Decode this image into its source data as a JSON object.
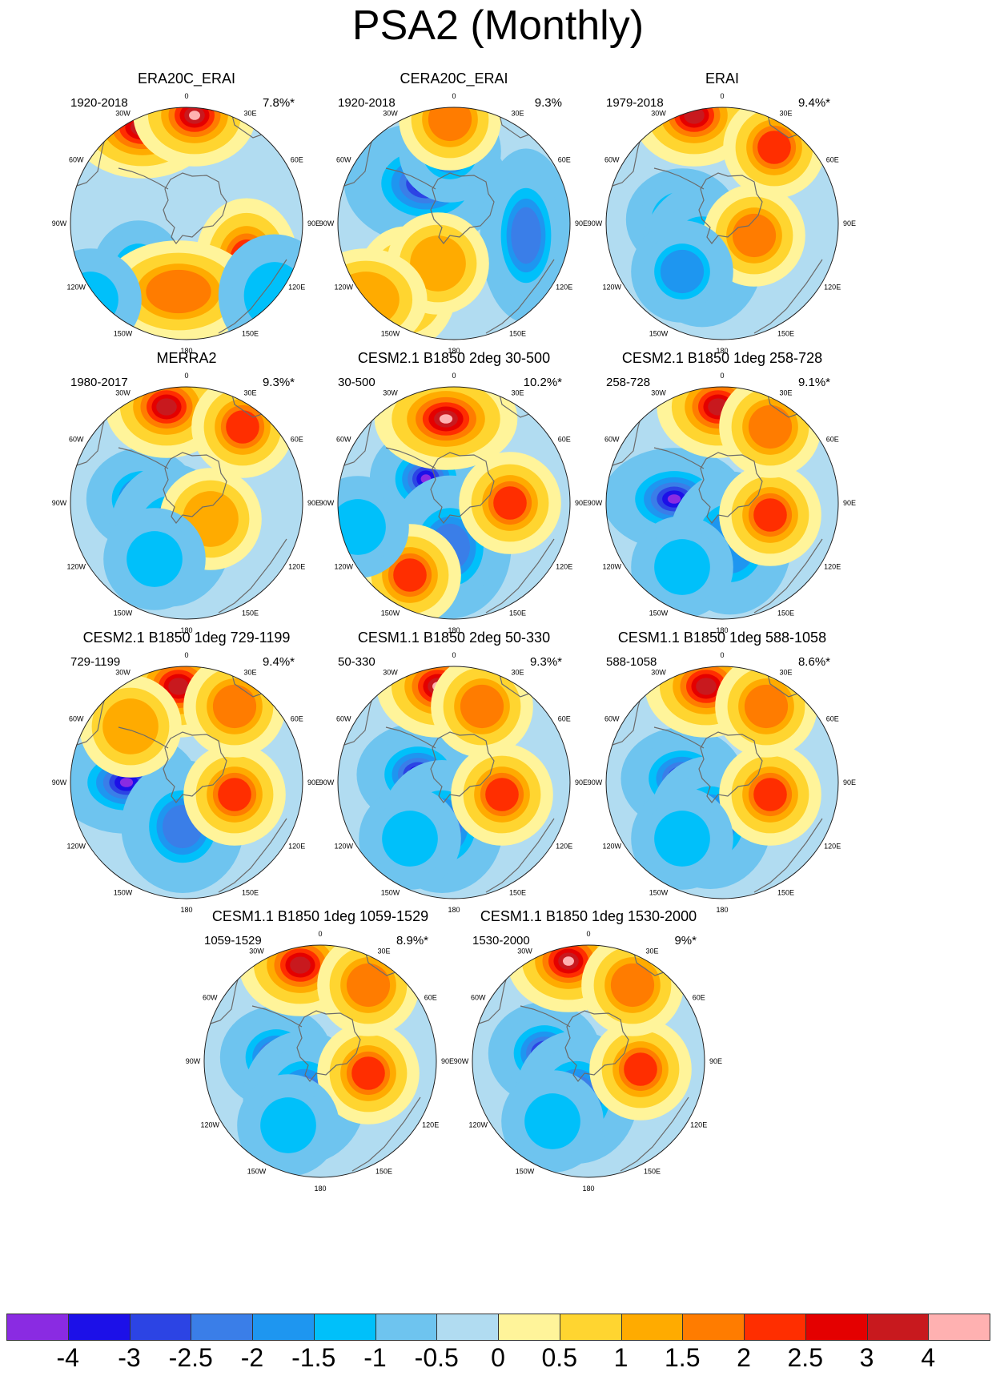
{
  "title": "PSA2 (Monthly)",
  "chart_data": {
    "type": "contour_map_grid",
    "projection": "south-polar stereographic",
    "map_labels": {
      "lon": [
        "0",
        "30E",
        "60E",
        "90E",
        "120E",
        "150E",
        "180",
        "150W",
        "120W",
        "90W",
        "60W",
        "30W"
      ]
    },
    "panels": [
      {
        "title": "ERA20C_ERAI",
        "period": "1920-2018",
        "variance": "7.8%*"
      },
      {
        "title": "CERA20C_ERAI",
        "period": "1920-2018",
        "variance": "9.3%"
      },
      {
        "title": "ERAI",
        "period": "1979-2018",
        "variance": "9.4%*"
      },
      {
        "title": "MERRA2",
        "period": "1980-2017",
        "variance": "9.3%*"
      },
      {
        "title": "CESM2.1 B1850 2deg 30-500",
        "period": "30-500",
        "variance": "10.2%*"
      },
      {
        "title": "CESM2.1 B1850 1deg 258-728",
        "period": "258-728",
        "variance": "9.1%*"
      },
      {
        "title": "CESM2.1 B1850 1deg 729-1199",
        "period": "729-1199",
        "variance": "9.4%*"
      },
      {
        "title": "CESM1.1 B1850 2deg 50-330",
        "period": "50-330",
        "variance": "9.3%*"
      },
      {
        "title": "CESM1.1 B1850 1deg 588-1058",
        "period": "588-1058",
        "variance": "8.6%*"
      },
      {
        "title": "CESM1.1 B1850 1deg 1059-1529",
        "period": "1059-1529",
        "variance": "8.9%*"
      },
      {
        "title": "CESM1.1 B1850 1deg 1530-2000",
        "period": "1530-2000",
        "variance": "9%*"
      }
    ],
    "colorbar": {
      "labels": [
        "-4",
        "-3",
        "-2.5",
        "-2",
        "-1.5",
        "-1",
        "-0.5",
        "0",
        "0.5",
        "1",
        "1.5",
        "2",
        "2.5",
        "3",
        "4"
      ],
      "colors": [
        "#8a2be2",
        "#1c10e8",
        "#2c44e4",
        "#3a7ee8",
        "#1e96f0",
        "#00c0fa",
        "#6ec4ef",
        "#b1dcf1",
        "#fff49a",
        "#ffd530",
        "#ffab00",
        "#ff7c00",
        "#ff2e00",
        "#e40000",
        "#c8191e",
        "#ffb1b1"
      ]
    }
  }
}
